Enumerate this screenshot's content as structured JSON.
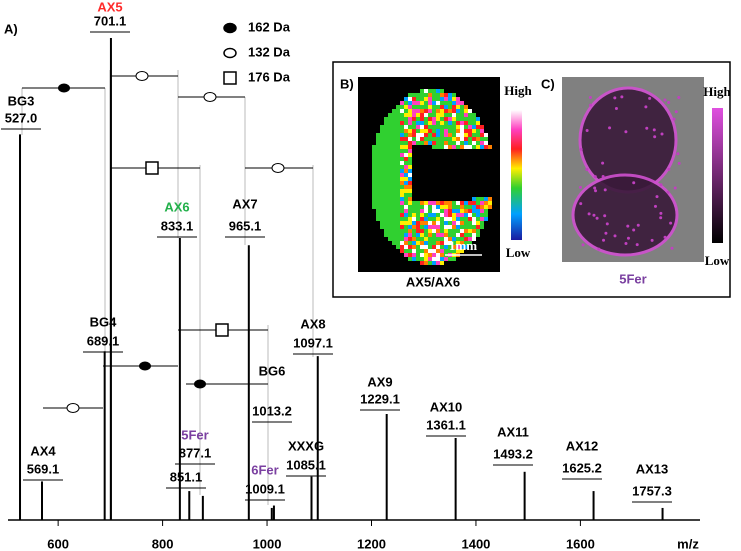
{
  "panel_label": "A)",
  "chart_data": {
    "type": "spectrum",
    "x": [
      527.0,
      569.1,
      689.1,
      701.1,
      833.1,
      851.1,
      877.1,
      965.1,
      1009.1,
      1013.2,
      1085.1,
      1097.1,
      1229.1,
      1361.1,
      1493.2,
      1625.2,
      1757.3
    ],
    "x_labels": [
      "527.0",
      "569.1",
      "689.1",
      "701.1",
      "833.1",
      "851.1",
      "877.1",
      "965.1",
      "1009.1",
      "1013.2",
      "1085.1",
      "1097.1",
      "1229.1",
      "1361.1",
      "1493.2",
      "1625.2",
      "1757.3"
    ],
    "names": [
      "BG3",
      "AX4",
      "BG4",
      "AX5",
      "AX6",
      null,
      "5Fer",
      "AX7",
      "6Fer",
      "BG6",
      "XXXG",
      "AX8",
      "AX9",
      "AX10",
      "AX11",
      "AX12",
      "AX13"
    ],
    "name_colors": [
      "#000000",
      "#000000",
      "#000000",
      "#ff2a2a",
      "#22b04a",
      "#000000",
      "#7a3fa0",
      "#000000",
      "#7a3fa0",
      "#000000",
      "#000000",
      "#000000",
      "#000000",
      "#000000",
      "#000000",
      "#000000",
      "#000000"
    ],
    "values": [
      80,
      8,
      35,
      100,
      58.5,
      6,
      5,
      57,
      2.5,
      3,
      9,
      34,
      22,
      17,
      10,
      6,
      2.5
    ],
    "color": "#000000",
    "xlim": [
      504,
      1829
    ],
    "ylim": [
      0,
      100
    ],
    "xticks": [
      600,
      800,
      1000,
      1200,
      1400,
      1600
    ],
    "xlabel": "m/z",
    "legend": [
      {
        "label": "162 Da",
        "marker": "filled-ellipse"
      },
      {
        "label": "132 Da",
        "marker": "open-ellipse"
      },
      {
        "label": "176 Da",
        "marker": "open-square"
      }
    ]
  },
  "insets": [
    {
      "label": "B)",
      "high": "High",
      "low": "Low",
      "scale_bar": "1mm",
      "caption": "AX5/AX6"
    },
    {
      "label": "C)",
      "high": "High",
      "low": "Low",
      "caption": "5Fer"
    }
  ]
}
